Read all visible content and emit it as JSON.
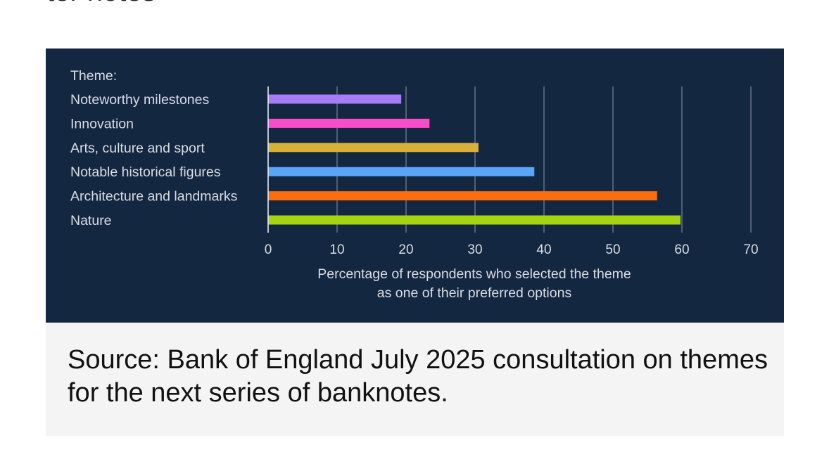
{
  "heading_fragment": "ter notes",
  "chart_data": {
    "type": "bar",
    "orientation": "horizontal",
    "category_header": "Theme:",
    "categories": [
      "Noteworthy milestones",
      "Innovation",
      "Arts, culture and sport",
      "Notable historical figures",
      "Architecture and landmarks",
      "Nature"
    ],
    "values": [
      19.3,
      23.4,
      30.5,
      38.6,
      56.4,
      59.8
    ],
    "colors": [
      "#a97cf7",
      "#f64ec8",
      "#d8b13a",
      "#5aa5f7",
      "#fb6e10",
      "#a6d412"
    ],
    "xlabel": [
      "Percentage of respondents who selected the theme",
      "as one of their preferred options"
    ],
    "xlim": [
      0,
      70
    ],
    "xticks": [
      0,
      10,
      20,
      30,
      40,
      50,
      60,
      70
    ],
    "grid": "vertical",
    "background": "#142741"
  },
  "caption": "Source: Bank of England July 2025 consultation on themes for the next series of banknotes."
}
